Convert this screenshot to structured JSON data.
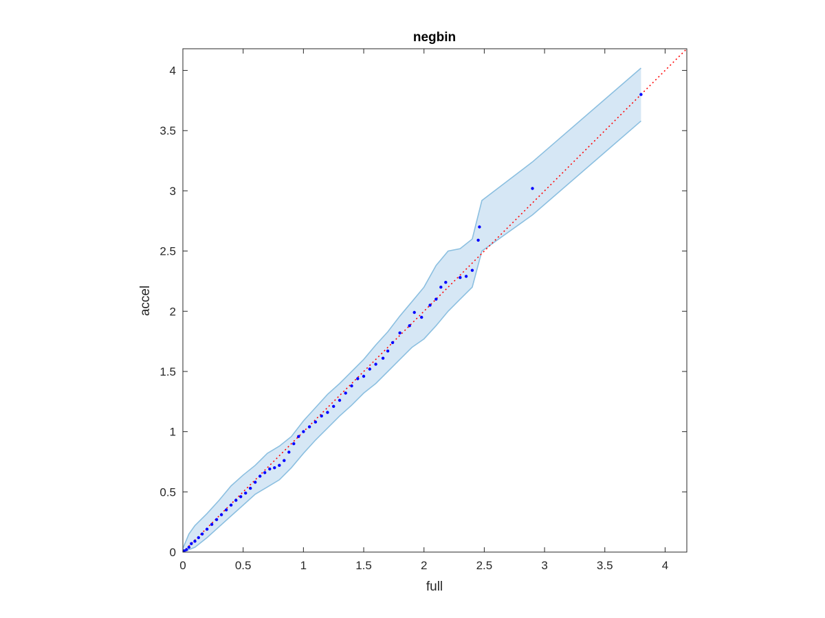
{
  "chart_data": {
    "type": "scatter",
    "title": "negbin",
    "xlabel": "full",
    "ylabel": "accel",
    "xlim": [
      0,
      4.18
    ],
    "ylim": [
      0,
      4.18
    ],
    "xticks": [
      0,
      0.5,
      1,
      1.5,
      2,
      2.5,
      3,
      3.5,
      4
    ],
    "yticks": [
      0,
      0.5,
      1,
      1.5,
      2,
      2.5,
      3,
      3.5,
      4
    ],
    "xtick_labels": [
      "0",
      "0.5",
      "1",
      "1.5",
      "2",
      "2.5",
      "3",
      "3.5",
      "4"
    ],
    "ytick_labels": [
      "0",
      "0.5",
      "1",
      "1.5",
      "2",
      "2.5",
      "3",
      "3.5",
      "4"
    ],
    "grid": false,
    "reference_line": {
      "style": "dotted",
      "color": "#ff0000",
      "from": [
        0,
        0
      ],
      "to": [
        4.18,
        4.18
      ]
    },
    "band": {
      "fill": "#d6e7f5",
      "edge": "#8bbfe0",
      "upper": [
        [
          0,
          0.03
        ],
        [
          0.05,
          0.15
        ],
        [
          0.1,
          0.22
        ],
        [
          0.2,
          0.32
        ],
        [
          0.3,
          0.43
        ],
        [
          0.4,
          0.55
        ],
        [
          0.5,
          0.64
        ],
        [
          0.6,
          0.72
        ],
        [
          0.7,
          0.82
        ],
        [
          0.8,
          0.88
        ],
        [
          0.9,
          0.96
        ],
        [
          1.0,
          1.09
        ],
        [
          1.1,
          1.2
        ],
        [
          1.2,
          1.31
        ],
        [
          1.3,
          1.4
        ],
        [
          1.4,
          1.5
        ],
        [
          1.5,
          1.6
        ],
        [
          1.6,
          1.72
        ],
        [
          1.7,
          1.83
        ],
        [
          1.8,
          1.96
        ],
        [
          1.9,
          2.08
        ],
        [
          2.0,
          2.2
        ],
        [
          2.1,
          2.38
        ],
        [
          2.2,
          2.5
        ],
        [
          2.3,
          2.52
        ],
        [
          2.4,
          2.6
        ],
        [
          2.48,
          2.92
        ],
        [
          2.9,
          3.24
        ],
        [
          3.8,
          4.02
        ]
      ],
      "lower": [
        [
          0,
          0.0
        ],
        [
          0.1,
          0.04
        ],
        [
          0.2,
          0.12
        ],
        [
          0.3,
          0.21
        ],
        [
          0.4,
          0.3
        ],
        [
          0.5,
          0.39
        ],
        [
          0.6,
          0.48
        ],
        [
          0.7,
          0.54
        ],
        [
          0.8,
          0.6
        ],
        [
          0.9,
          0.7
        ],
        [
          1.0,
          0.82
        ],
        [
          1.1,
          0.93
        ],
        [
          1.2,
          1.03
        ],
        [
          1.3,
          1.13
        ],
        [
          1.4,
          1.22
        ],
        [
          1.5,
          1.32
        ],
        [
          1.6,
          1.4
        ],
        [
          1.7,
          1.5
        ],
        [
          1.8,
          1.6
        ],
        [
          1.9,
          1.7
        ],
        [
          2.0,
          1.77
        ],
        [
          2.1,
          1.88
        ],
        [
          2.2,
          2.0
        ],
        [
          2.3,
          2.1
        ],
        [
          2.4,
          2.2
        ],
        [
          2.48,
          2.5
        ],
        [
          2.9,
          2.8
        ],
        [
          3.8,
          3.58
        ]
      ]
    },
    "series": [
      {
        "color": "#0000ff",
        "points": [
          [
            0.01,
            0.01
          ],
          [
            0.03,
            0.02
          ],
          [
            0.05,
            0.04
          ],
          [
            0.07,
            0.07
          ],
          [
            0.1,
            0.09
          ],
          [
            0.13,
            0.12
          ],
          [
            0.16,
            0.15
          ],
          [
            0.2,
            0.19
          ],
          [
            0.24,
            0.23
          ],
          [
            0.28,
            0.27
          ],
          [
            0.32,
            0.31
          ],
          [
            0.36,
            0.35
          ],
          [
            0.4,
            0.39
          ],
          [
            0.44,
            0.43
          ],
          [
            0.48,
            0.46
          ],
          [
            0.52,
            0.49
          ],
          [
            0.56,
            0.53
          ],
          [
            0.6,
            0.58
          ],
          [
            0.64,
            0.63
          ],
          [
            0.68,
            0.66
          ],
          [
            0.72,
            0.69
          ],
          [
            0.76,
            0.7
          ],
          [
            0.8,
            0.72
          ],
          [
            0.84,
            0.76
          ],
          [
            0.88,
            0.83
          ],
          [
            0.92,
            0.9
          ],
          [
            0.96,
            0.96
          ],
          [
            1.0,
            1.0
          ],
          [
            1.05,
            1.04
          ],
          [
            1.1,
            1.08
          ],
          [
            1.15,
            1.13
          ],
          [
            1.2,
            1.16
          ],
          [
            1.25,
            1.21
          ],
          [
            1.3,
            1.26
          ],
          [
            1.35,
            1.32
          ],
          [
            1.4,
            1.38
          ],
          [
            1.45,
            1.44
          ],
          [
            1.5,
            1.46
          ],
          [
            1.55,
            1.52
          ],
          [
            1.6,
            1.56
          ],
          [
            1.66,
            1.61
          ],
          [
            1.7,
            1.67
          ],
          [
            1.74,
            1.74
          ],
          [
            1.8,
            1.82
          ],
          [
            1.88,
            1.88
          ],
          [
            1.92,
            1.99
          ],
          [
            1.98,
            1.95
          ],
          [
            2.05,
            2.05
          ],
          [
            2.1,
            2.1
          ],
          [
            2.14,
            2.2
          ],
          [
            2.18,
            2.24
          ],
          [
            2.3,
            2.28
          ],
          [
            2.35,
            2.29
          ],
          [
            2.4,
            2.34
          ],
          [
            2.45,
            2.59
          ],
          [
            2.46,
            2.7
          ],
          [
            2.9,
            3.02
          ],
          [
            3.8,
            3.8
          ]
        ]
      }
    ]
  }
}
